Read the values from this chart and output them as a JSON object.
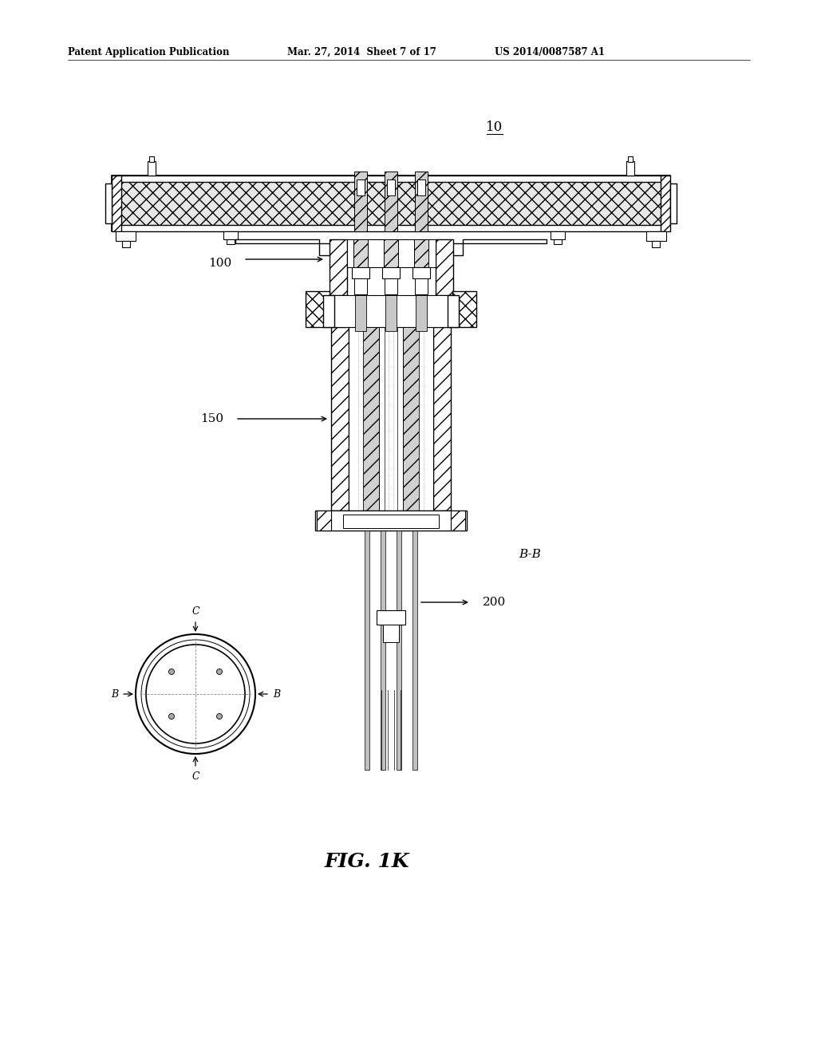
{
  "background_color": "#ffffff",
  "header_left": "Patent Application Publication",
  "header_mid": "Mar. 27, 2014  Sheet 7 of 17",
  "header_right": "US 2014/0087587 A1",
  "label_10": "10",
  "label_100": "100",
  "label_150": "150",
  "label_200": "200",
  "label_BB": "B-B",
  "label_fig": "FIG. 1K",
  "line_color": "#000000"
}
